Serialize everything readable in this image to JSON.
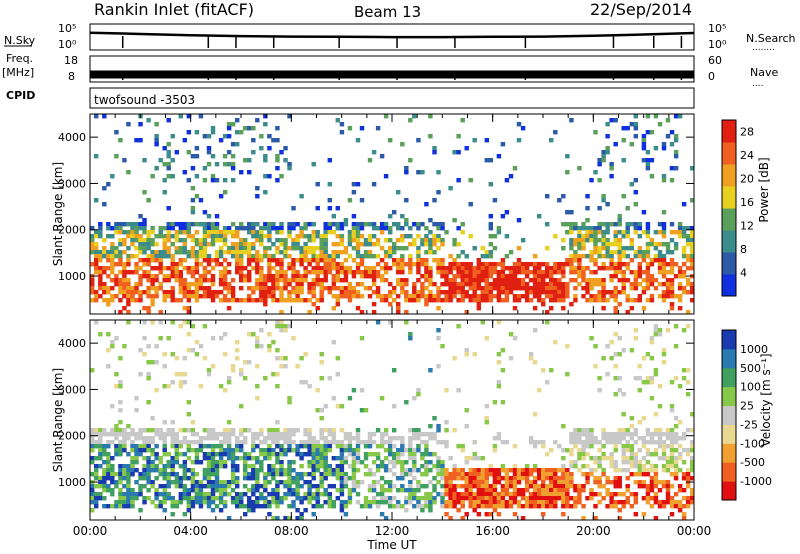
{
  "header": {
    "station": "Rankin Inlet (fitACF)",
    "beam": "Beam 13",
    "date": "22/Sep/2014"
  },
  "left_labels": {
    "nsky": "N.Sky",
    "freq_top": "Freq.",
    "freq_unit": "[MHz]",
    "cpid": "CPID"
  },
  "right_labels": {
    "nsearch": "N.Search",
    "nave": "Nave",
    "dots_search": "........",
    "dots_nave": "....",
    "nsky_top": "10^5",
    "nsky_bot": "10^0",
    "nave_top": "60",
    "nave_bot": "0"
  },
  "cpid_text": "twofsound -3503",
  "colors": {
    "power": [
      "#1030e0",
      "#2a5aa8",
      "#3c8c8c",
      "#5aa05a",
      "#e8d020",
      "#f0a020",
      "#f06020",
      "#e02010"
    ],
    "velocity": [
      "#e01010",
      "#f06020",
      "#f0a030",
      "#e8d890",
      "#c8c8c8",
      "#88c848",
      "#40a060",
      "#2a7ab0",
      "#1a3ab0"
    ]
  },
  "chart_data": [
    {
      "type": "line",
      "panel": "noise / frequency strips",
      "xlabel": "",
      "ylabel": "N.Sky",
      "y_left_ticks": [
        "10^5",
        "10^0"
      ],
      "freq_ticks": [
        "18",
        "8"
      ],
      "nave_ticks": [
        "60",
        "0"
      ],
      "series": [
        {
          "name": "N.Sky",
          "x": [
            0,
            2,
            4,
            6,
            8,
            10,
            12,
            14,
            16,
            18,
            20,
            22,
            24
          ],
          "values": [
            3000,
            1500,
            800,
            500,
            400,
            350,
            300,
            300,
            350,
            400,
            600,
            1200,
            2500
          ]
        },
        {
          "name": "Freq.",
          "x": [
            0,
            24
          ],
          "values": [
            10.5,
            10.5
          ]
        }
      ]
    },
    {
      "type": "heatmap",
      "title": "",
      "xlabel": "Time UT",
      "ylabel": "Slant Range [km]",
      "x_ticks": [
        "00:00",
        "04:00",
        "08:00",
        "12:00",
        "16:00",
        "20:00",
        "00:00"
      ],
      "y_ticks": [
        "1000",
        "2000",
        "3000",
        "4000"
      ],
      "xlim": [
        0,
        24
      ],
      "ylim": [
        180,
        4500
      ],
      "colorbar_label": "Power [dB]",
      "colorbar_ticks": [
        "4",
        "8",
        "12",
        "16",
        "20",
        "24",
        "28"
      ],
      "crange": [
        0,
        30
      ]
    },
    {
      "type": "heatmap",
      "title": "",
      "xlabel": "Time UT",
      "ylabel": "Slant Range [km]",
      "x_ticks": [
        "00:00",
        "04:00",
        "08:00",
        "12:00",
        "16:00",
        "20:00",
        "00:00"
      ],
      "y_ticks": [
        "1000",
        "2000",
        "3000",
        "4000"
      ],
      "xlim": [
        0,
        24
      ],
      "ylim": [
        180,
        4500
      ],
      "colorbar_label": "Velocity [m s^-1]",
      "colorbar_ticks": [
        "1000",
        "500",
        "100",
        "25",
        "-25",
        "-100",
        "-500",
        "-1000"
      ]
    }
  ]
}
